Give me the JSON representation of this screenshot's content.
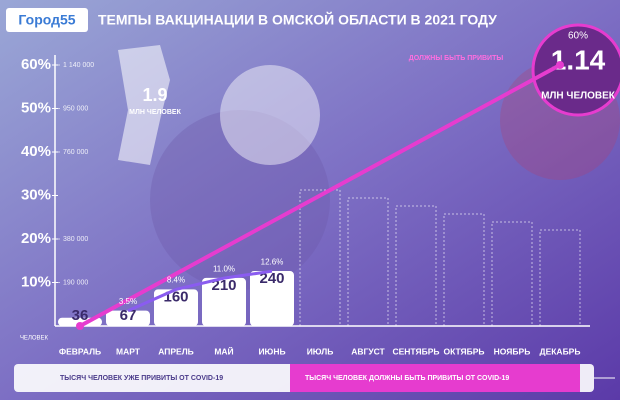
{
  "logo": "Город55",
  "chart_data": {
    "type": "bar",
    "title": "ТЕМПЫ ВАКЦИНАЦИИ В ОМСКОЙ ОБЛАСТИ В 2021 ГОДУ",
    "categories": [
      "ФЕВРАЛЬ",
      "МАРТ",
      "АПРЕЛЬ",
      "МАЙ",
      "ИЮНЬ",
      "ИЮЛЬ",
      "АВГУСТ",
      "СЕНТЯБРЬ",
      "ОКТЯБРЬ",
      "НОЯБРЬ",
      "ДЕКАБРЬ"
    ],
    "series": [
      {
        "name": "ТЫСЯЧ ЧЕЛОВЕК УЖЕ ПРИВИТЫ ОТ COVID-19",
        "color": "#ffffff",
        "axis": "y2",
        "values": [
          36000,
          67000,
          160000,
          210000,
          240000,
          null,
          null,
          null,
          null,
          null,
          null
        ],
        "value_labels": [
          "36",
          "67",
          "160",
          "210",
          "240",
          null,
          null,
          null,
          null,
          null,
          null
        ]
      },
      {
        "name": "ТЫСЯЧ ЧЕЛОВЕК ДОЛЖНЫ БЫТЬ ПРИВИТЫ ОТ COVID-19",
        "color": "#e63ccf",
        "values": [
          0,
          null,
          null,
          null,
          null,
          null,
          null,
          null,
          null,
          null,
          60
        ]
      },
      {
        "color": "#8a5cf0",
        "values": [
          null,
          3.5,
          8.4,
          11.0,
          12.6,
          null,
          null,
          null,
          null,
          null,
          null
        ],
        "value_labels": [
          null,
          "3.5%",
          "8.4%",
          "11.0%",
          "12.6%",
          null,
          null,
          null,
          null,
          null,
          null
        ]
      }
    ],
    "ylim": [
      0,
      60
    ],
    "yticks": [
      {
        "value": 10,
        "label": "10%"
      },
      {
        "value": 20,
        "label": "20%"
      },
      {
        "value": 30,
        "label": "30%"
      },
      {
        "value": 40,
        "label": "40%"
      },
      {
        "value": 50,
        "label": "50%"
      },
      {
        "value": 60,
        "label": "60%"
      }
    ],
    "y2lim": [
      0,
      1140000
    ],
    "y2ticks": [
      {
        "value": 190000,
        "label": "190 000"
      },
      {
        "value": 380000,
        "label": "380 000"
      },
      {
        "value": 760000,
        "label": "760 000"
      },
      {
        "value": 950000,
        "label": "950 000"
      },
      {
        "value": 1140000,
        "label": "1 140 000"
      }
    ],
    "axis_unit": "ЧЕЛОВЕК",
    "population": {
      "value": "1.9",
      "label": "МЛН ЧЕЛОВЕК"
    },
    "target": {
      "percent": "60%",
      "value": "1.14",
      "label": "МЛН ЧЕЛОВЕК",
      "note": "ДОЛЖНЫ БЫТЬ ПРИВИТЫ"
    }
  }
}
